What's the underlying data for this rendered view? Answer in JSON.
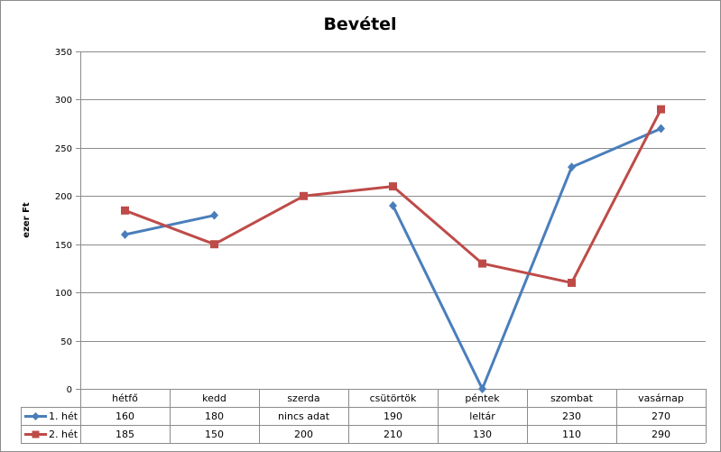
{
  "chart_data": {
    "type": "line",
    "title": "Bevétel",
    "ylabel": "ezer Ft",
    "ylim": [
      0,
      350
    ],
    "yticks": [
      0,
      50,
      100,
      150,
      200,
      250,
      300,
      350
    ],
    "categories": [
      "hétfő",
      "kedd",
      "szerda",
      "csütörtök",
      "péntek",
      "szombat",
      "vasárnap"
    ],
    "grid": true,
    "legend_placement": "data-table",
    "series": [
      {
        "name": "1. hét",
        "color": "#4a7ebb",
        "marker": "diamond",
        "values": [
          160,
          180,
          null,
          190,
          0,
          230,
          270
        ],
        "table_labels": [
          "160",
          "180",
          "nincs adat",
          "190",
          "leltár",
          "230",
          "270"
        ]
      },
      {
        "name": "2. hét",
        "color": "#be4b48",
        "marker": "square",
        "values": [
          185,
          150,
          200,
          210,
          130,
          110,
          290
        ],
        "table_labels": [
          "185",
          "150",
          "200",
          "210",
          "130",
          "110",
          "290"
        ]
      }
    ]
  }
}
